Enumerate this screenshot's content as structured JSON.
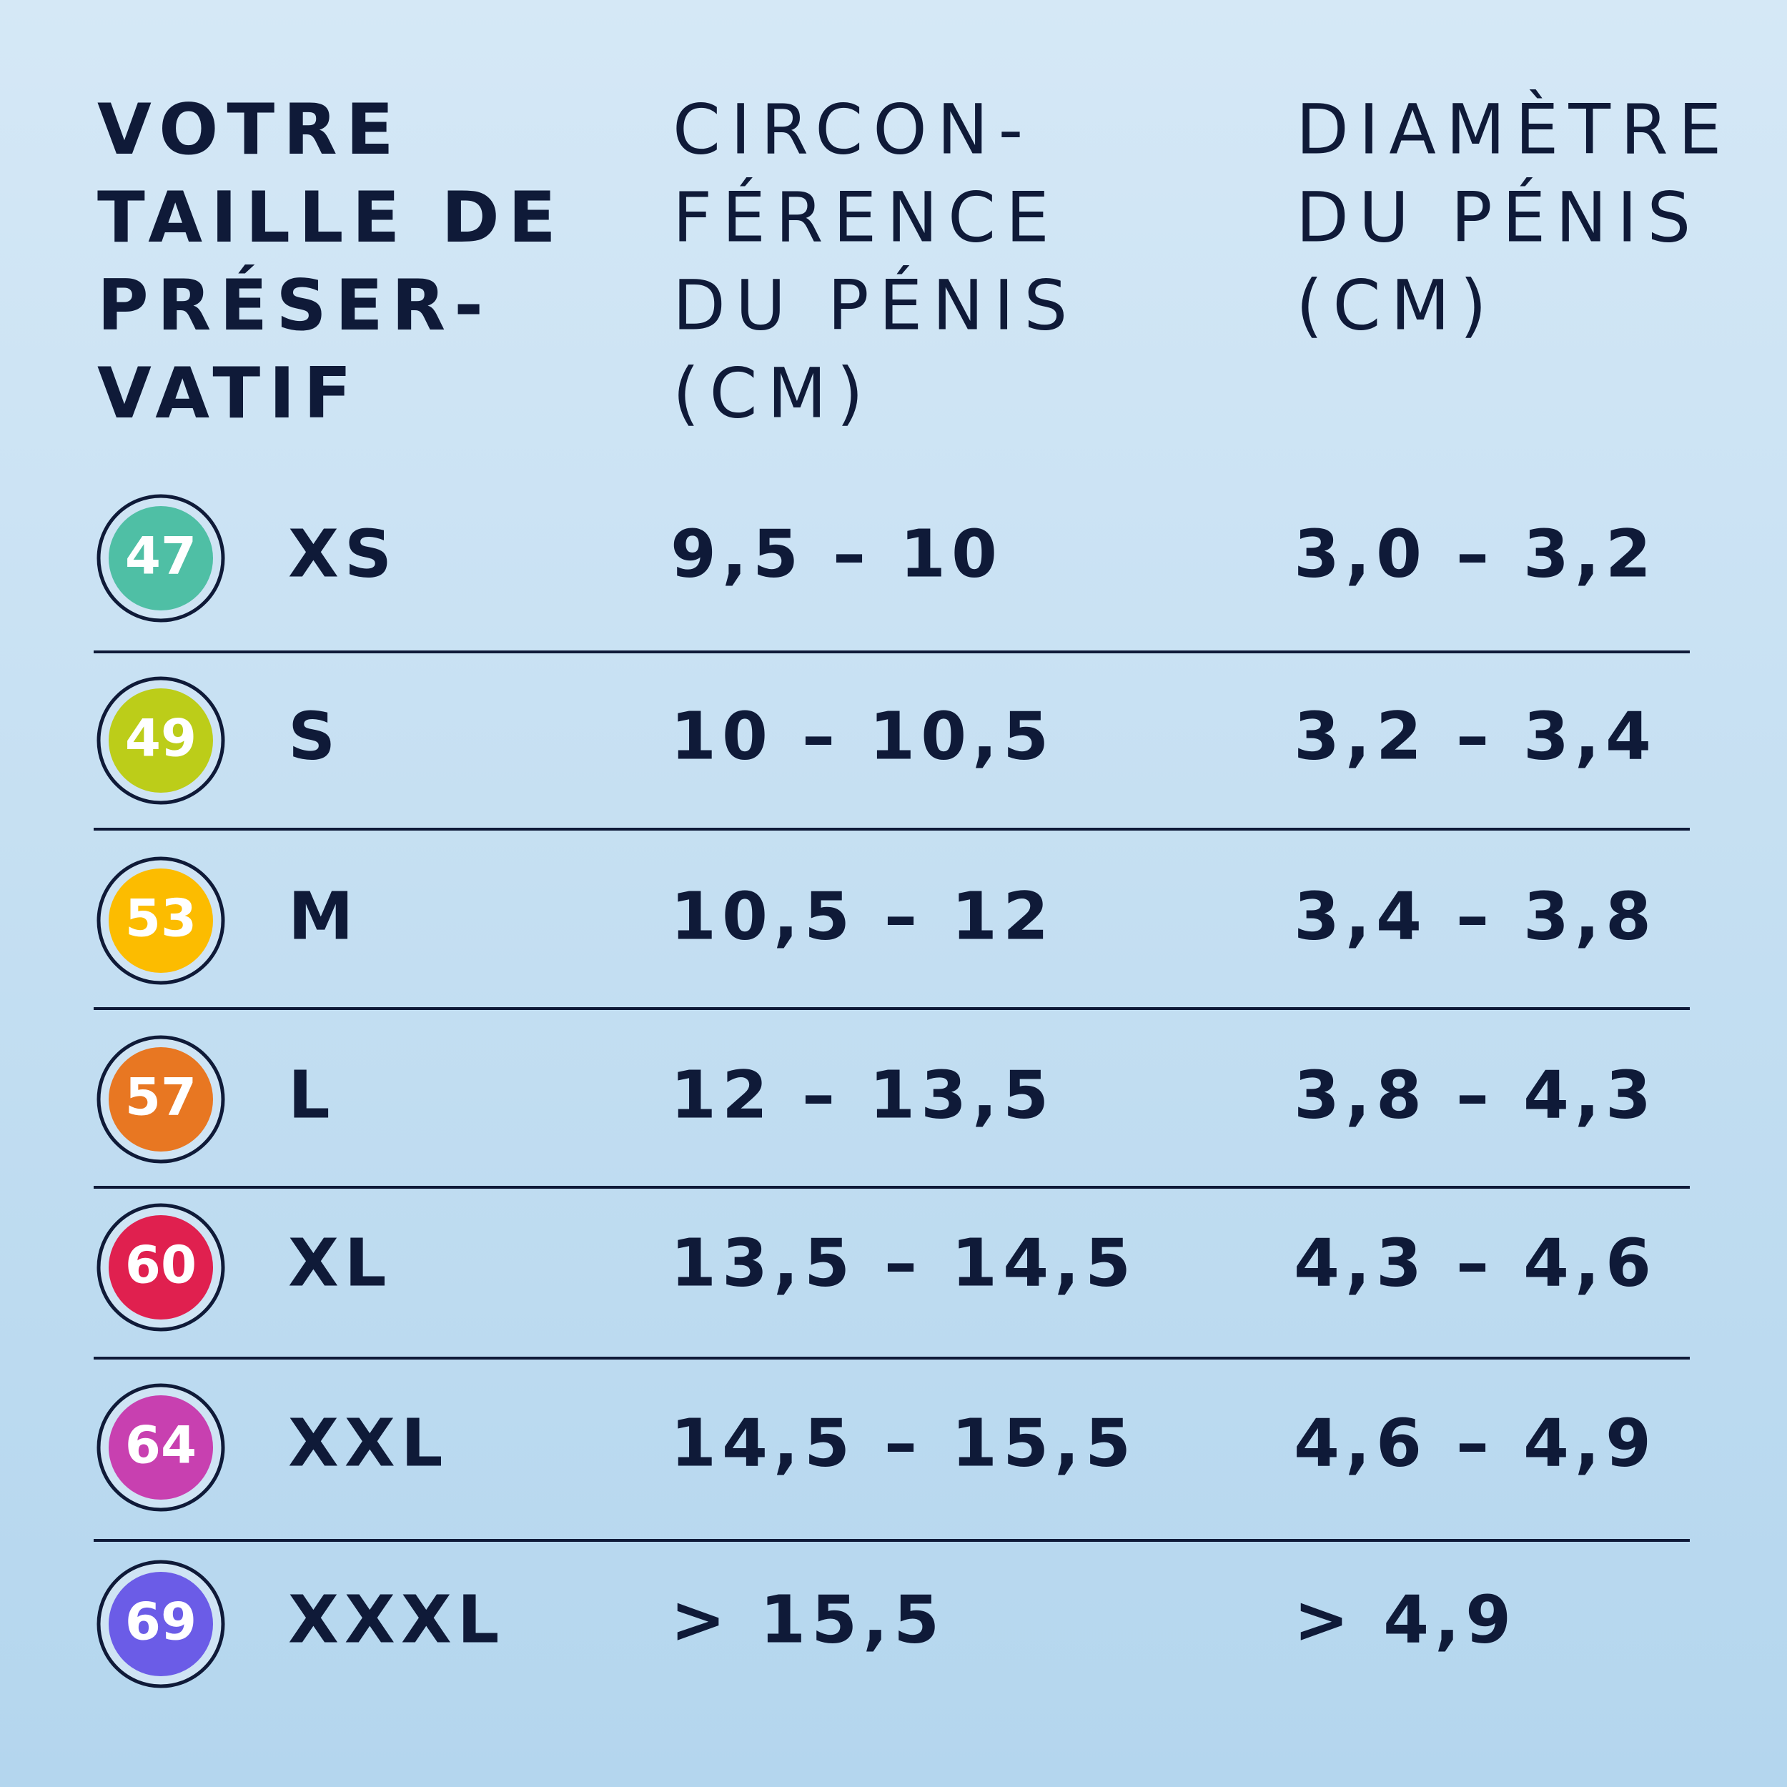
{
  "headers": [
    {
      "lines": [
        "VOTRE",
        "TAILLE DE",
        "PRÉSER-",
        "VATIF"
      ]
    },
    {
      "lines": [
        "CIRCON-",
        "FÉRENCE",
        "DU PÉNIS",
        "(CM)"
      ]
    },
    {
      "lines": [
        "DIAMÈTRE",
        "DU PÉNIS",
        "(CM)"
      ]
    }
  ],
  "rows": [
    {
      "badge": "47",
      "color": "#4fbfa5",
      "size": "XS",
      "circumference": "9,5 – 10",
      "diameter": "3,0 – 3,2"
    },
    {
      "badge": "49",
      "color": "#bccd19",
      "size": "S",
      "circumference": "10 – 10,5",
      "diameter": "3,2 – 3,4"
    },
    {
      "badge": "53",
      "color": "#fcbc00",
      "size": "M",
      "circumference": "10,5 – 12",
      "diameter": "3,4 – 3,8"
    },
    {
      "badge": "57",
      "color": "#e87722",
      "size": "L",
      "circumference": "12 – 13,5",
      "diameter": "3,8 – 4,3"
    },
    {
      "badge": "60",
      "color": "#e0204f",
      "size": "XL",
      "circumference": "13,5 – 14,5",
      "diameter": "4,3 – 4,6"
    },
    {
      "badge": "64",
      "color": "#c840b0",
      "size": "XXL",
      "circumference": "14,5 – 15,5",
      "diameter": "4,6 – 4,9"
    },
    {
      "badge": "69",
      "color": "#6b5ce7",
      "size": "XXXL",
      "circumference": "> 15,5",
      "diameter": "> 4,9"
    }
  ]
}
